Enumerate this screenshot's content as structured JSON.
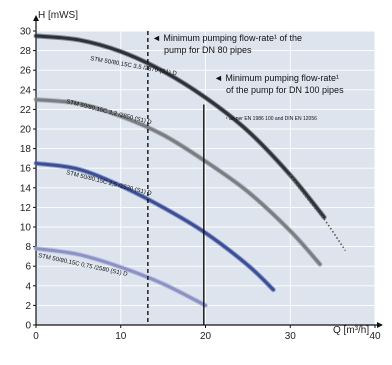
{
  "chart_data": {
    "type": "line",
    "ylabel": "H [mWS]",
    "xlabel": "Q [m³/h]",
    "xlim": [
      0,
      40
    ],
    "ylim": [
      0,
      30
    ],
    "x_ticks": [
      "0",
      "10",
      "20",
      "30",
      "40"
    ],
    "y_ticks": [
      "0",
      "2",
      "4",
      "6",
      "8",
      "10",
      "12",
      "14",
      "16",
      "18",
      "20",
      "22",
      "24",
      "26",
      "28",
      "30"
    ],
    "grid": true,
    "background_fill": "#dde4ee",
    "annotations": {
      "dn80_line_x": 13.2,
      "dn100_line_x": 19.8,
      "dn80_text": [
        "◄ Minimum pumping flow-rate¹ of the",
        "pump for DN 80 pipes"
      ],
      "dn100_text": [
        "◄ Minimum pumping flow-rate¹",
        "of the pump for DN 100 pipes"
      ],
      "norm_text": "¹ as per EN 1986 100 and DIN EN 12056"
    },
    "series": [
      {
        "name": "STM 50/80.15C 3,5 /2870 (S1) D",
        "color": "#2e3238",
        "x": [
          0,
          5,
          10,
          15,
          20,
          25,
          30,
          34
        ],
        "y": [
          29.5,
          29.1,
          27.9,
          25.9,
          23.2,
          19.8,
          15.3,
          11.0
        ],
        "ext_color": "#555555",
        "ext_x": [
          30,
          32,
          34,
          36.5
        ],
        "ext_y": [
          15.3,
          12.9,
          10.8,
          7.6
        ]
      },
      {
        "name": "STM 50/80.15C 3,2 /2850 (S1) D",
        "color": "#7a7d82",
        "x": [
          0,
          5,
          10,
          15,
          20,
          25,
          30,
          33.5
        ],
        "y": [
          23.0,
          22.6,
          21.3,
          19.4,
          16.7,
          13.6,
          9.6,
          6.2
        ]
      },
      {
        "name": "STM 50/80.15C 2,5 /2530 (S1) D",
        "color": "#3c4e96",
        "x": [
          0,
          5,
          10,
          15,
          20,
          25,
          28
        ],
        "y": [
          16.5,
          15.9,
          14.2,
          12.0,
          9.4,
          6.1,
          3.6
        ]
      },
      {
        "name": "STM 50/80.15C 0,75 /2580 (S1) D",
        "color": "#8c92c6",
        "x": [
          0,
          5,
          10,
          15,
          20
        ],
        "y": [
          7.8,
          7.2,
          5.9,
          4.2,
          2.0
        ]
      }
    ]
  }
}
